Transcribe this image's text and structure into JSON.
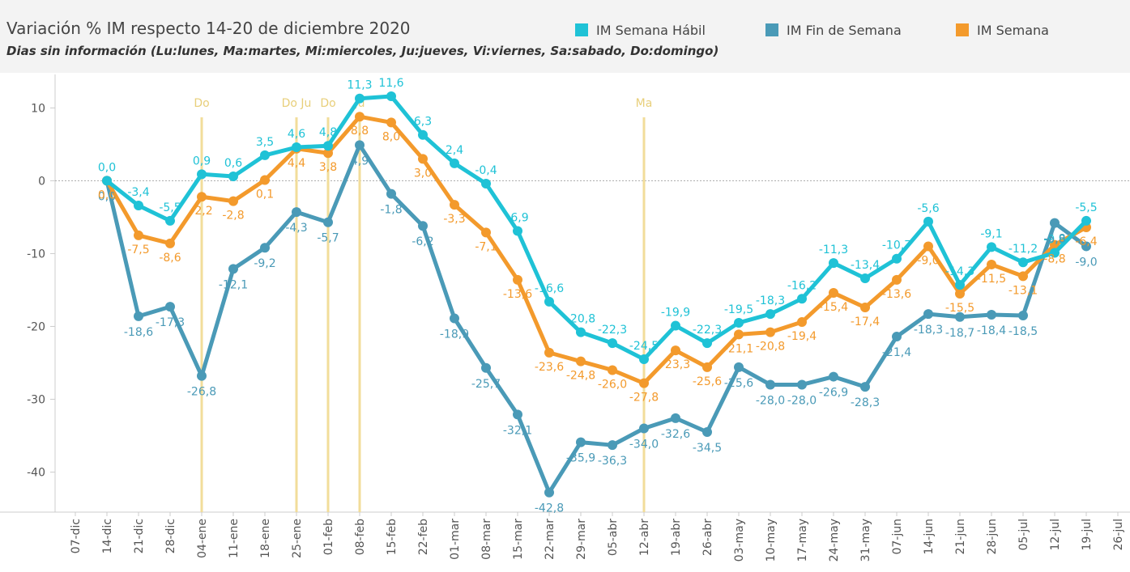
{
  "chart_data": {
    "type": "line",
    "title": "Variación % IM respecto 14-20 de diciembre 2020",
    "subtitle": "Dias sin información (Lu:lunes, Ma:martes, Mi:miercoles, Ju:jueves, Vi:viernes, Sa:sabado, Do:domingo)",
    "categories": [
      "07-dic",
      "14-dic",
      "21-dic",
      "28-dic",
      "04-ene",
      "11-ene",
      "18-ene",
      "25-ene",
      "01-feb",
      "08-feb",
      "15-feb",
      "22-feb",
      "01-mar",
      "08-mar",
      "15-mar",
      "22-mar",
      "29-mar",
      "05-abr",
      "12-abr",
      "19-abr",
      "26-abr",
      "03-may",
      "10-may",
      "17-may",
      "24-may",
      "31-may",
      "07-jun",
      "14-jun",
      "21-jun",
      "28-jun",
      "05-jul",
      "12-jul",
      "19-jul",
      "26-jul"
    ],
    "series": [
      {
        "name": "IM Semana Hábil",
        "color": "#1fc2d6",
        "values": [
          null,
          0.0,
          -3.4,
          -5.5,
          0.9,
          0.6,
          3.5,
          4.6,
          4.8,
          11.3,
          11.6,
          6.3,
          2.4,
          -0.4,
          -6.9,
          -16.6,
          -20.8,
          -22.3,
          -24.5,
          -19.9,
          -22.3,
          -19.5,
          -18.3,
          -16.2,
          -11.3,
          -13.4,
          -10.7,
          -5.6,
          -14.3,
          -9.1,
          -11.2,
          -9.9,
          -5.5,
          null
        ],
        "value_labels": [
          null,
          "0,0",
          "-3,4",
          "-5,5",
          "0,9",
          "0,6",
          "3,5",
          "4,6",
          "4,8",
          "11,3",
          "11,6",
          "6,3",
          "2,4",
          "-0,4",
          "-6,9",
          "-16,6",
          "-20,8",
          "-22,3",
          "-24,5",
          "-19,9",
          "-22,3",
          "-19,5",
          "-18,3",
          "-16,2",
          "-11,3",
          "-13,4",
          "-10,7",
          "-5,6",
          "-14,3",
          "-9,1",
          "-11,2",
          "-9,9",
          "-5,5",
          null
        ]
      },
      {
        "name": "IM Fin de Semana",
        "color": "#4a9ab7",
        "values": [
          null,
          0.0,
          -18.6,
          -17.3,
          -26.8,
          -12.1,
          -9.2,
          -4.3,
          -5.7,
          4.9,
          -1.8,
          -6.2,
          -18.9,
          -25.7,
          -32.1,
          -42.8,
          -35.9,
          -36.3,
          -34.0,
          -32.6,
          -34.5,
          -25.6,
          -28.0,
          -28.0,
          -26.9,
          -28.3,
          -21.4,
          -18.3,
          -18.7,
          -18.4,
          -18.5,
          -5.8,
          -9.0,
          null
        ],
        "value_labels": [
          null,
          "0,0",
          "-18,6",
          "-17,3",
          "-26,8",
          "-12,1",
          "-9,2",
          "-4,3",
          "-5,7",
          "4,9",
          "-1,8",
          "-6,2",
          "-18,9",
          "-25,7",
          "-32,1",
          "-42,8",
          "-35,9",
          "-36,3",
          "-34,0",
          "-32,6",
          "-34,5",
          "-25,6",
          "-28,0",
          "-28,0",
          "-26,9",
          "-28,3",
          "-21,4",
          "-18,3",
          "-18,7",
          "-18,4",
          "-18,5",
          "-5,8",
          "-9,0",
          null
        ]
      },
      {
        "name": "IM Semana",
        "color": "#f39a2c",
        "values": [
          null,
          0.0,
          -7.5,
          -8.6,
          -2.2,
          -2.8,
          0.1,
          4.4,
          3.8,
          8.8,
          8.0,
          3.0,
          -3.3,
          -7.1,
          -13.6,
          -23.6,
          -24.8,
          -26.0,
          -27.8,
          -23.3,
          -25.6,
          -21.1,
          -20.8,
          -19.4,
          -15.4,
          -17.4,
          -13.6,
          -9.0,
          -15.5,
          -11.5,
          -13.1,
          -8.8,
          -6.4,
          null
        ],
        "value_labels": [
          null,
          "0,0",
          "-7,5",
          "-8,6",
          "-2,2",
          "-2,8",
          "0,1",
          "4,4",
          "3,8",
          "8,8",
          "8,0",
          "3,0",
          "-3,3",
          "-7,1",
          "-13,6",
          "-23,6",
          "-24,8",
          "-26,0",
          "-27,8",
          "-23,3",
          "-25,6",
          "-21,1",
          "-20,8",
          "-19,4",
          "-15,4",
          "-17,4",
          "-13,6",
          "-9,0",
          "-15,5",
          "-11,5",
          "-13,1",
          "-8,8",
          "-6,4",
          null
        ]
      }
    ],
    "ylim": [
      -45.5,
      14.6
    ],
    "yticks": [
      10,
      0,
      -10,
      -20,
      -30,
      -40
    ],
    "annotations": [
      {
        "x": "04-ene",
        "label": "Do"
      },
      {
        "x": "25-ene",
        "label": "Do Ju"
      },
      {
        "x": "01-feb",
        "label": "Do"
      },
      {
        "x": "08-feb",
        "label": "Ju"
      },
      {
        "x": "12-abr",
        "label": "Ma"
      }
    ],
    "annotation_color": "#f2dd9a"
  }
}
